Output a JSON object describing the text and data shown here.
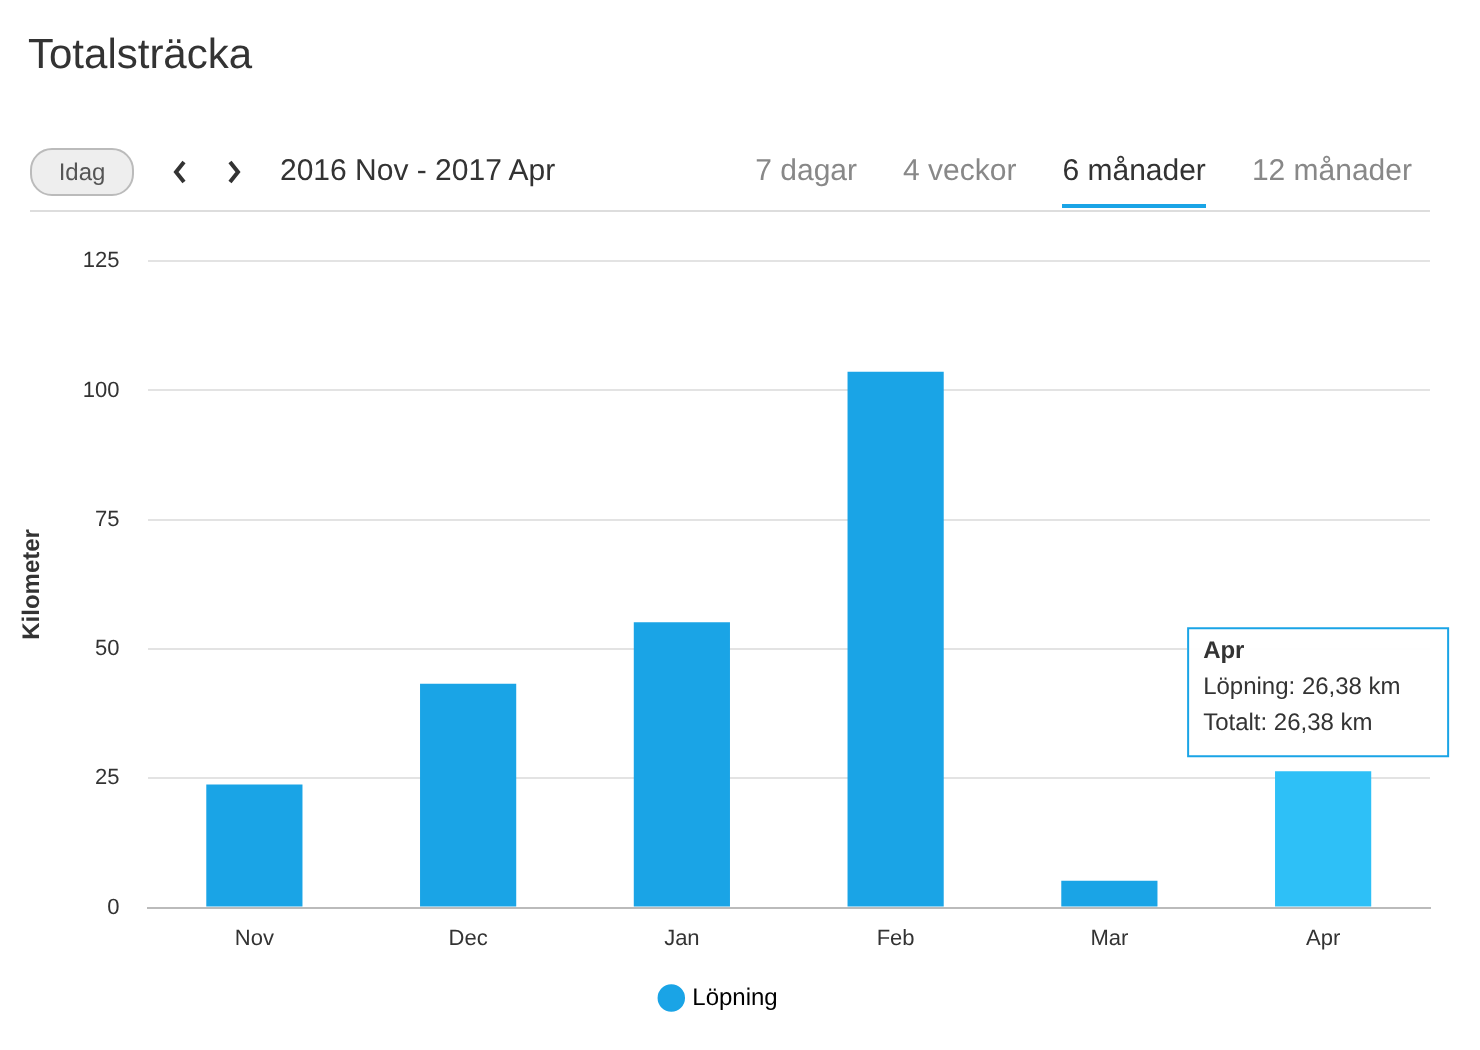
{
  "chart_data": {
    "type": "bar",
    "title": "Totalsträcka",
    "ylabel": "Kilometer",
    "categories": [
      "Nov",
      "Dec",
      "Jan",
      "Feb",
      "Mar",
      "Apr"
    ],
    "series": [
      {
        "name": "Löpning",
        "color": "#1aa4e6",
        "colors": [
          "#1aa4e6",
          "#1aa4e6",
          "#1aa4e6",
          "#1aa4e6",
          "#1aa4e6",
          "#2ec0f7"
        ],
        "values": [
          23.8,
          43.3,
          55.2,
          103.6,
          5.2,
          26.38
        ]
      }
    ],
    "ylim": [
      0,
      125
    ],
    "yticks": [
      0,
      25,
      50,
      75,
      100,
      125
    ],
    "grid": "y",
    "legend": "bottom",
    "annotations": [
      "Idag",
      "2016 Nov - 2017 Apr",
      "7 dagar",
      "4 veckor",
      "6 månader",
      "12 månader",
      "Apr",
      "Löpning: 26,38 km",
      "Totalt: 26,38 km"
    ]
  }
}
